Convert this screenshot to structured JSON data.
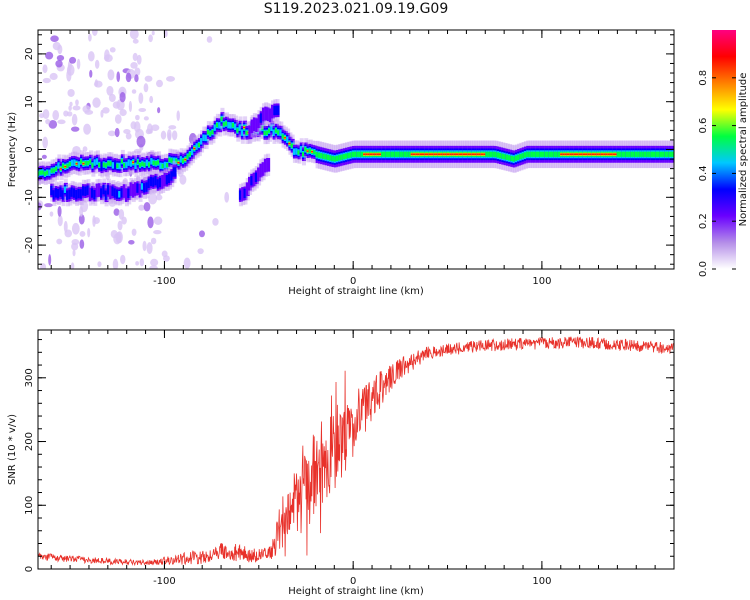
{
  "page_title": "S119.2023.021.09.19.G09",
  "colors": {
    "snr_line": "#e8312a",
    "axis": "#000000",
    "background": "#ffffff"
  },
  "chart_data": [
    {
      "type": "heatmap",
      "name": "spectrogram",
      "xlabel": "Height of straight line (km)",
      "ylabel": "Frequency (Hz)",
      "xlim": [
        -167,
        170
      ],
      "ylim": [
        -25,
        25
      ],
      "x_ticks": [
        -100,
        0,
        100
      ],
      "y_ticks": [
        -20,
        -10,
        0,
        10,
        20
      ],
      "grid": false,
      "colorbar": {
        "label": "Normalized spectral amplitude",
        "range": [
          0,
          1
        ],
        "ticks": [
          0.0,
          0.2,
          0.4,
          0.6,
          0.8
        ],
        "colormap": [
          "#ffffff",
          "#b48de8",
          "#6a00ff",
          "#0000ff",
          "#00c8ff",
          "#00ff40",
          "#ffff00",
          "#ff8000",
          "#ff0000",
          "#ff0080"
        ]
      },
      "ridges": [
        {
          "points": [
            [
              -167,
              -5
            ],
            [
              -150,
              -3
            ],
            [
              -140,
              -3
            ],
            [
              -120,
              -3
            ],
            [
              -110,
              -3
            ],
            [
              -100,
              -3
            ],
            [
              -90,
              -2
            ],
            [
              -80,
              2
            ],
            [
              -70,
              6
            ],
            [
              -60,
              4
            ],
            [
              -50,
              4
            ],
            [
              -40,
              4
            ],
            [
              -32,
              0
            ],
            [
              -20,
              -1
            ],
            [
              -10,
              -2
            ],
            [
              0,
              -1
            ],
            [
              10,
              -1
            ],
            [
              30,
              -1
            ],
            [
              60,
              -1
            ],
            [
              75,
              -1
            ],
            [
              85,
              -2
            ],
            [
              92,
              -1
            ],
            [
              100,
              -1
            ],
            [
              120,
              -1
            ],
            [
              145,
              -1
            ],
            [
              170,
              -1
            ]
          ],
          "amplitude": 0.8
        },
        {
          "points": [
            [
              -160,
              -9
            ],
            [
              -140,
              -9
            ],
            [
              -120,
              -9
            ],
            [
              -105,
              -7
            ],
            [
              -95,
              -5
            ]
          ],
          "amplitude": 0.45
        },
        {
          "points": [
            [
              -60,
              -10
            ],
            [
              -52,
              -6
            ],
            [
              -45,
              -3
            ]
          ],
          "amplitude": 0.35
        },
        {
          "points": [
            [
              -55,
              4
            ],
            [
              -48,
              7
            ],
            [
              -40,
              8
            ]
          ],
          "amplitude": 0.3
        }
      ]
    },
    {
      "type": "line",
      "name": "snr",
      "xlabel": "Height of straight line (km)",
      "ylabel": "SNR (10 * v/v)",
      "xlim": [
        -167,
        170
      ],
      "ylim": [
        0,
        375
      ],
      "x_ticks": [
        -100,
        0,
        100
      ],
      "y_ticks": [
        0,
        100,
        200,
        300
      ],
      "grid": false,
      "envelope": [
        [
          -167,
          20
        ],
        [
          -150,
          16
        ],
        [
          -130,
          12
        ],
        [
          -110,
          10
        ],
        [
          -95,
          14
        ],
        [
          -80,
          20
        ],
        [
          -70,
          28
        ],
        [
          -60,
          25
        ],
        [
          -50,
          20
        ],
        [
          -44,
          25
        ],
        [
          -38,
          70
        ],
        [
          -30,
          110
        ],
        [
          -20,
          150
        ],
        [
          -10,
          185
        ],
        [
          -3,
          210
        ],
        [
          5,
          240
        ],
        [
          15,
          285
        ],
        [
          25,
          315
        ],
        [
          40,
          340
        ],
        [
          60,
          348
        ],
        [
          80,
          352
        ],
        [
          100,
          354
        ],
        [
          120,
          356
        ],
        [
          140,
          352
        ],
        [
          160,
          348
        ],
        [
          170,
          346
        ]
      ],
      "noise": [
        [
          -167,
          6
        ],
        [
          -110,
          4
        ],
        [
          -80,
          12
        ],
        [
          -60,
          14
        ],
        [
          -45,
          10
        ],
        [
          -38,
          40
        ],
        [
          -25,
          70
        ],
        [
          -10,
          60
        ],
        [
          5,
          45
        ],
        [
          20,
          20
        ],
        [
          40,
          10
        ],
        [
          170,
          9
        ]
      ]
    }
  ]
}
